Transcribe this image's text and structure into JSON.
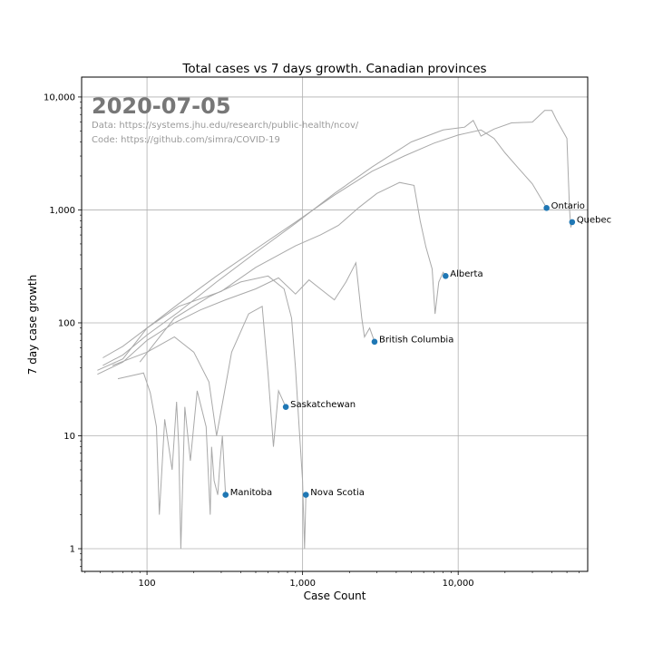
{
  "chart_data": {
    "type": "line",
    "title": "Total cases vs 7 days growth. Canadian provinces",
    "xlabel": "Case Count",
    "ylabel": "7 day case growth",
    "x_scale": "log",
    "y_scale": "log",
    "xlim": [
      38,
      68000
    ],
    "ylim": [
      0.63,
      15000
    ],
    "grid": true,
    "xticks": [
      {
        "value": 100,
        "label": "100"
      },
      {
        "value": 1000,
        "label": "1,000"
      },
      {
        "value": 10000,
        "label": "10,000"
      }
    ],
    "yticks": [
      {
        "value": 1,
        "label": "1"
      },
      {
        "value": 10,
        "label": "10"
      },
      {
        "value": 100,
        "label": "100"
      },
      {
        "value": 1000,
        "label": "1,000"
      },
      {
        "value": 10000,
        "label": "10,000"
      }
    ],
    "annotation": {
      "date": "2020-07-05",
      "data_line": "Data: https://systems.jhu.edu/research/public-health/ncov/",
      "code_line": "Code: https://github.com/simra/COVID-19"
    },
    "line_color": "#a9a9a9",
    "marker_color": "#1f77b4",
    "series": [
      {
        "name": "Ontario",
        "points": [
          [
            52,
            49
          ],
          [
            70,
            62
          ],
          [
            100,
            90
          ],
          [
            160,
            148
          ],
          [
            280,
            260
          ],
          [
            500,
            450
          ],
          [
            900,
            780
          ],
          [
            1600,
            1350
          ],
          [
            2800,
            2200
          ],
          [
            4500,
            3000
          ],
          [
            7000,
            3900
          ],
          [
            10000,
            4600
          ],
          [
            14000,
            5100
          ],
          [
            17000,
            4300
          ],
          [
            20000,
            3200
          ],
          [
            24000,
            2400
          ],
          [
            30000,
            1700
          ],
          [
            37000,
            1040
          ]
        ],
        "end_label": "Ontario",
        "end_x": 37000,
        "end_y": 1040
      },
      {
        "name": "Quebec",
        "points": [
          [
            52,
            42
          ],
          [
            70,
            52
          ],
          [
            100,
            78
          ],
          [
            160,
            125
          ],
          [
            280,
            230
          ],
          [
            500,
            420
          ],
          [
            900,
            760
          ],
          [
            1600,
            1400
          ],
          [
            2800,
            2400
          ],
          [
            5000,
            4000
          ],
          [
            8000,
            5100
          ],
          [
            11000,
            5400
          ],
          [
            12500,
            6200
          ],
          [
            14000,
            4500
          ],
          [
            17000,
            5200
          ],
          [
            22000,
            5900
          ],
          [
            30000,
            6000
          ],
          [
            36000,
            7600
          ],
          [
            40000,
            7600
          ],
          [
            43000,
            6200
          ],
          [
            47000,
            5000
          ],
          [
            50000,
            4300
          ],
          [
            51000,
            2000
          ],
          [
            52000,
            1000
          ],
          [
            53000,
            700
          ],
          [
            54000,
            780
          ]
        ],
        "end_label": "Quebec",
        "end_x": 54000,
        "end_y": 780
      },
      {
        "name": "Alberta",
        "points": [
          [
            48,
            38
          ],
          [
            70,
            48
          ],
          [
            100,
            90
          ],
          [
            160,
            140
          ],
          [
            300,
            190
          ],
          [
            500,
            310
          ],
          [
            900,
            480
          ],
          [
            1300,
            600
          ],
          [
            1700,
            730
          ],
          [
            2300,
            1050
          ],
          [
            3000,
            1400
          ],
          [
            4200,
            1750
          ],
          [
            5200,
            1650
          ],
          [
            5700,
            800
          ],
          [
            6200,
            470
          ],
          [
            6800,
            300
          ],
          [
            7100,
            120
          ],
          [
            7500,
            230
          ],
          [
            8000,
            280
          ],
          [
            8300,
            260
          ]
        ],
        "end_label": "Alberta",
        "end_x": 8300,
        "end_y": 260
      },
      {
        "name": "British Columbia",
        "points": [
          [
            48,
            35
          ],
          [
            70,
            45
          ],
          [
            100,
            70
          ],
          [
            150,
            100
          ],
          [
            220,
            130
          ],
          [
            320,
            160
          ],
          [
            500,
            200
          ],
          [
            700,
            250
          ],
          [
            900,
            180
          ],
          [
            1100,
            240
          ],
          [
            1300,
            200
          ],
          [
            1600,
            160
          ],
          [
            1900,
            230
          ],
          [
            2200,
            340
          ],
          [
            2400,
            110
          ],
          [
            2500,
            75
          ],
          [
            2700,
            90
          ],
          [
            2900,
            68
          ]
        ],
        "end_label": "British Columbia",
        "end_x": 2900,
        "end_y": 68
      },
      {
        "name": "Saskatchewan",
        "points": [
          [
            60,
            42
          ],
          [
            100,
            55
          ],
          [
            150,
            75
          ],
          [
            200,
            55
          ],
          [
            250,
            30
          ],
          [
            280,
            10
          ],
          [
            350,
            55
          ],
          [
            450,
            120
          ],
          [
            550,
            140
          ],
          [
            600,
            35
          ],
          [
            650,
            8
          ],
          [
            700,
            25
          ],
          [
            780,
            18
          ]
        ],
        "end_label": "Saskatchewan",
        "end_x": 780,
        "end_y": 18
      },
      {
        "name": "Nova Scotia",
        "points": [
          [
            90,
            45
          ],
          [
            150,
            110
          ],
          [
            250,
            170
          ],
          [
            400,
            230
          ],
          [
            600,
            260
          ],
          [
            760,
            200
          ],
          [
            850,
            110
          ],
          [
            900,
            40
          ],
          [
            950,
            12
          ],
          [
            1000,
            4
          ],
          [
            1030,
            1
          ],
          [
            1050,
            3
          ]
        ],
        "end_label": "Nova Scotia",
        "end_x": 1050,
        "end_y": 3
      },
      {
        "name": "Manitoba",
        "points": [
          [
            65,
            32
          ],
          [
            95,
            36
          ],
          [
            105,
            24
          ],
          [
            115,
            12
          ],
          [
            120,
            2
          ],
          [
            130,
            14
          ],
          [
            145,
            5
          ],
          [
            155,
            20
          ],
          [
            160,
            8
          ],
          [
            165,
            1
          ],
          [
            175,
            18
          ],
          [
            190,
            6
          ],
          [
            210,
            25
          ],
          [
            240,
            12
          ],
          [
            255,
            2
          ],
          [
            260,
            8
          ],
          [
            270,
            4
          ],
          [
            285,
            3
          ],
          [
            295,
            6
          ],
          [
            305,
            10
          ],
          [
            320,
            3
          ]
        ],
        "end_label": "Manitoba",
        "end_x": 320,
        "end_y": 3
      }
    ]
  }
}
